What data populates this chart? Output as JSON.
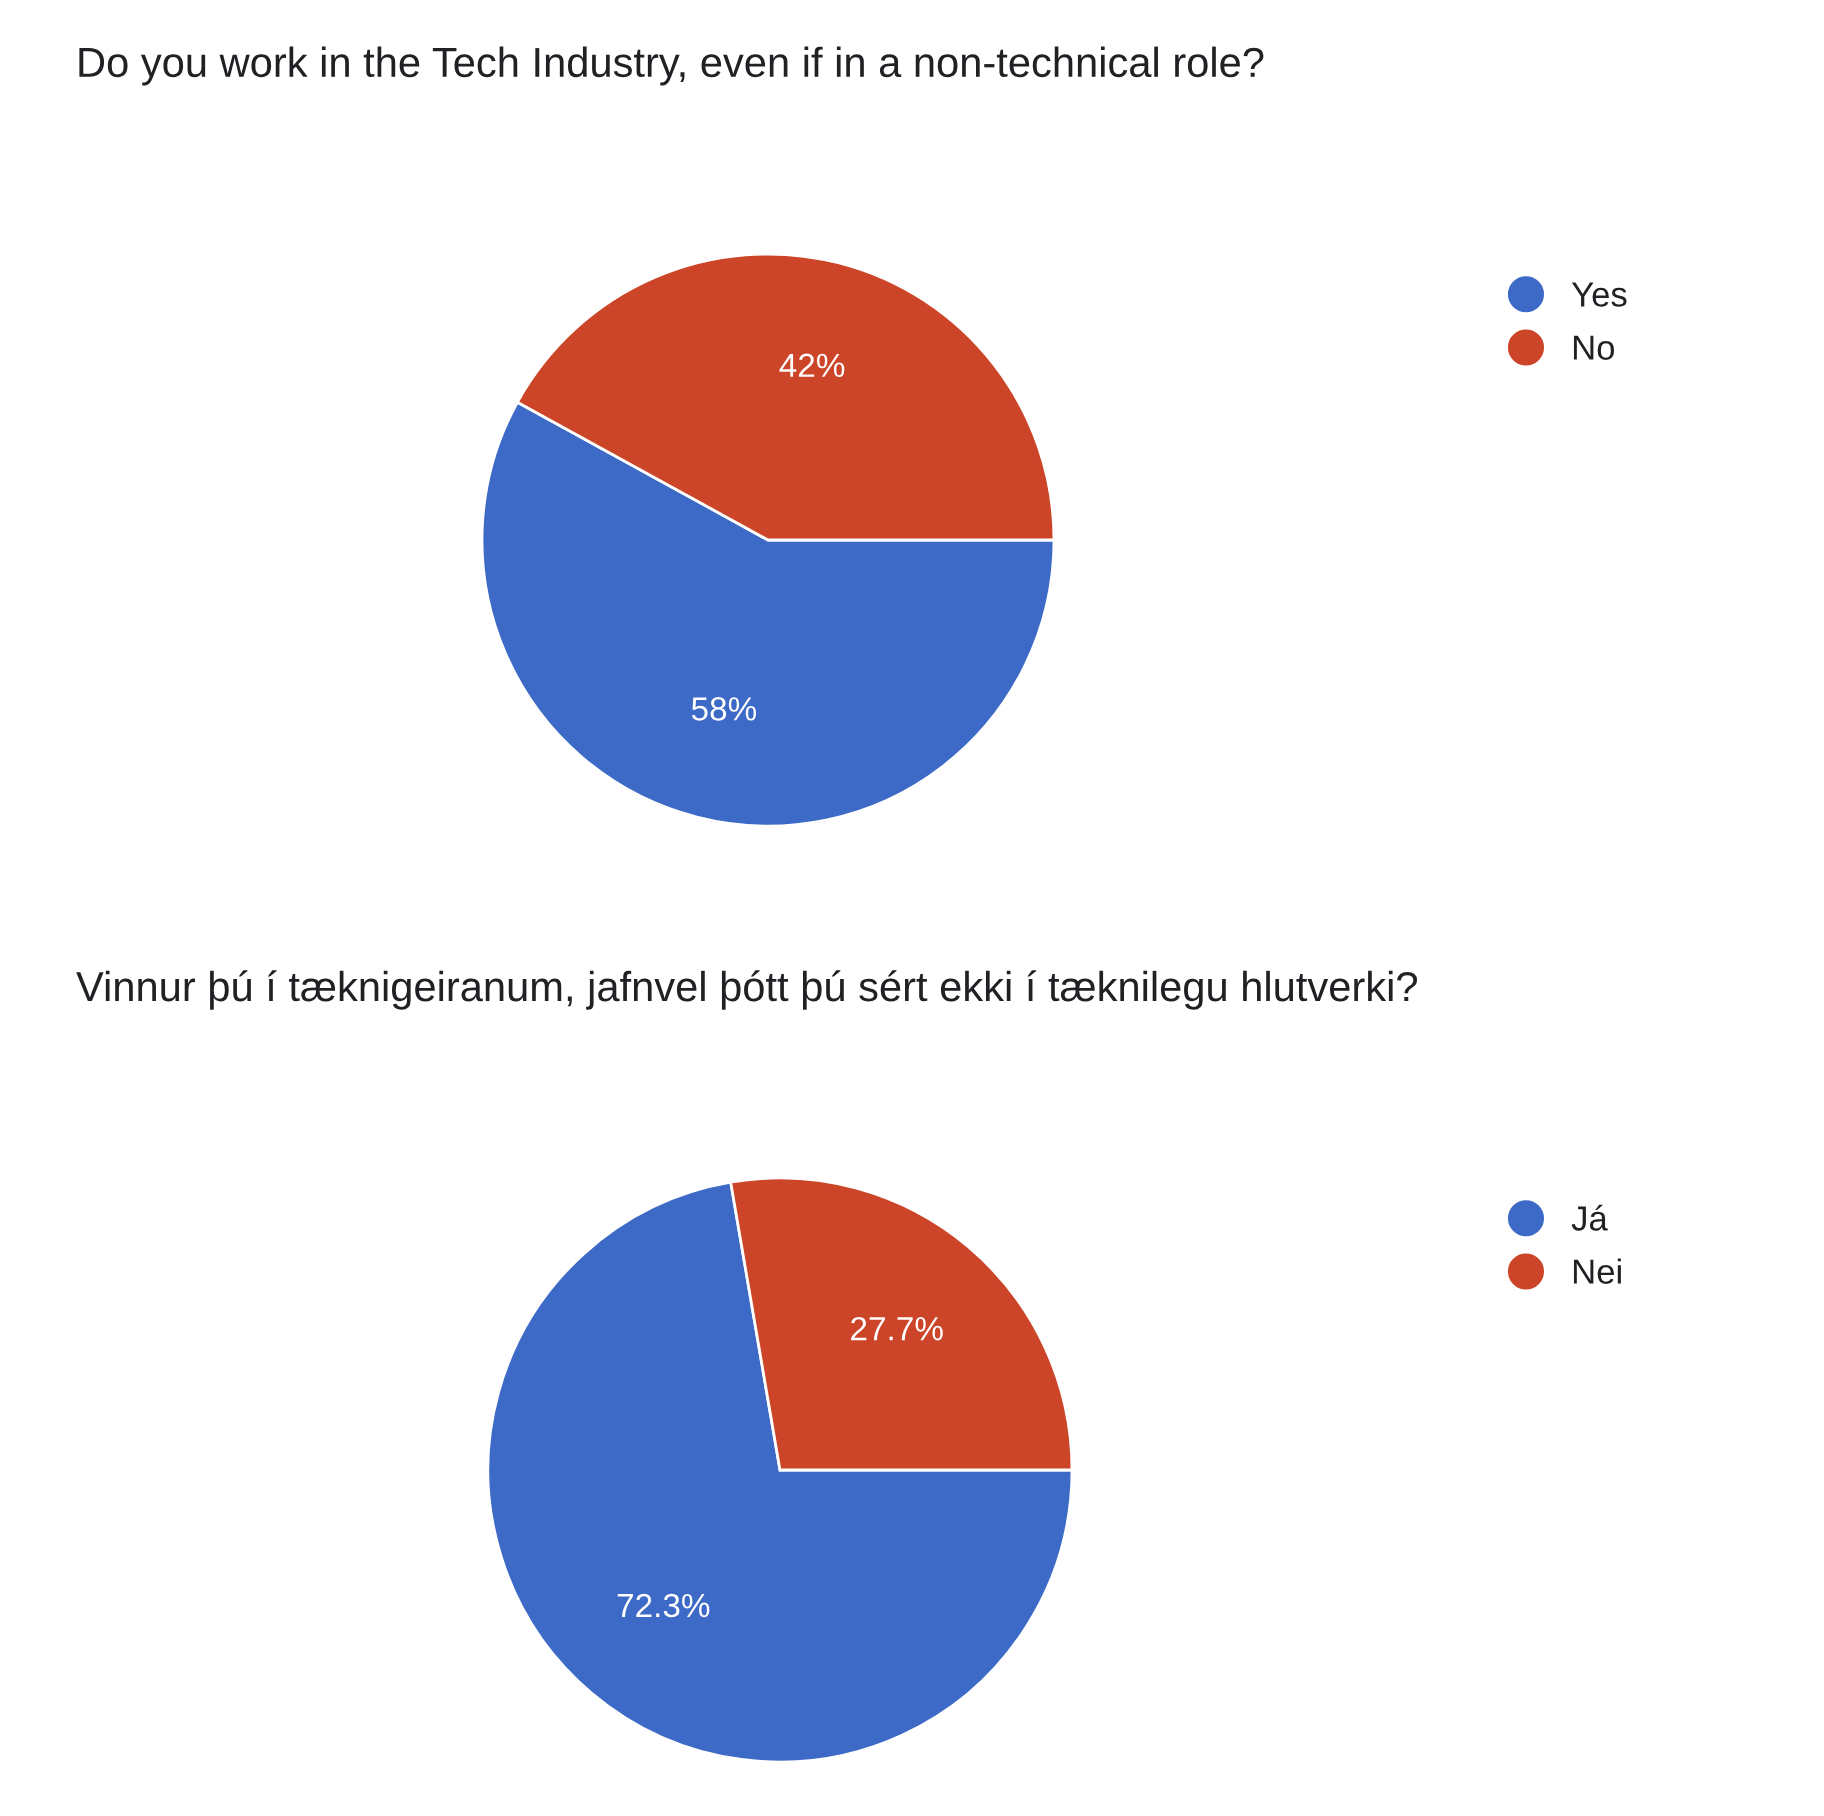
{
  "chart_data": [
    {
      "type": "pie",
      "title": "Do you work in the Tech Industry, even if in a non-technical role?",
      "categories": [
        "Yes",
        "No"
      ],
      "values": [
        58,
        42
      ],
      "colors": [
        "#3d6ac7",
        "#cd4528"
      ],
      "value_labels": [
        "58%",
        "42%"
      ],
      "legend": "right"
    },
    {
      "type": "pie",
      "title": "Vinnur þú í tæknigeiranum, jafnvel þótt þú sért ekki í tæknilegu hlutverki?",
      "categories": [
        "Já",
        "Nei"
      ],
      "values": [
        72.3,
        27.7
      ],
      "colors": [
        "#3d6ac7",
        "#cd4528"
      ],
      "value_labels": [
        "72.3%",
        "27.7%"
      ],
      "legend": "right"
    }
  ]
}
